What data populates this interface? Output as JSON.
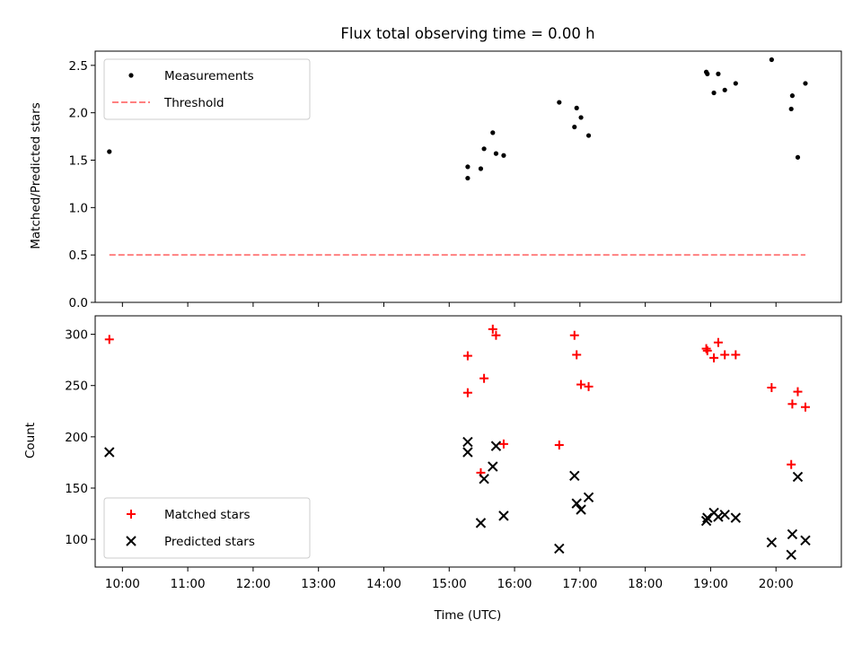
{
  "chart_data": {
    "type": "scatter",
    "title": "Flux total observing time = 0.00 h",
    "xlabel": "Time (UTC)",
    "x_ticks": [
      "10:00",
      "11:00",
      "12:00",
      "13:00",
      "14:00",
      "15:00",
      "16:00",
      "17:00",
      "18:00",
      "19:00",
      "20:00"
    ],
    "xlim": [
      "09:35",
      "21:00"
    ],
    "panels": [
      {
        "ylabel": "Matched/Predicted stars",
        "ylim": [
          0,
          2.65
        ],
        "y_ticks": [
          "0.0",
          "0.5",
          "1.0",
          "1.5",
          "2.0",
          "2.5"
        ],
        "legend_position": "upper left",
        "series": [
          {
            "name": "Measurements",
            "marker": "dot",
            "color": "#000000",
            "points": [
              {
                "x": "09:48",
                "y": 1.59
              },
              {
                "x": "15:17",
                "y": 1.43
              },
              {
                "x": "15:17",
                "y": 1.31
              },
              {
                "x": "15:29",
                "y": 1.41
              },
              {
                "x": "15:32",
                "y": 1.62
              },
              {
                "x": "15:40",
                "y": 1.79
              },
              {
                "x": "15:43",
                "y": 1.57
              },
              {
                "x": "15:50",
                "y": 1.55
              },
              {
                "x": "16:41",
                "y": 2.11
              },
              {
                "x": "16:55",
                "y": 1.85
              },
              {
                "x": "16:57",
                "y": 2.05
              },
              {
                "x": "17:01",
                "y": 1.95
              },
              {
                "x": "17:08",
                "y": 1.76
              },
              {
                "x": "18:56",
                "y": 2.43
              },
              {
                "x": "18:57",
                "y": 2.41
              },
              {
                "x": "19:03",
                "y": 2.21
              },
              {
                "x": "19:07",
                "y": 2.41
              },
              {
                "x": "19:13",
                "y": 2.24
              },
              {
                "x": "19:23",
                "y": 2.31
              },
              {
                "x": "19:56",
                "y": 2.56
              },
              {
                "x": "20:14",
                "y": 2.04
              },
              {
                "x": "20:15",
                "y": 2.18
              },
              {
                "x": "20:20",
                "y": 1.53
              },
              {
                "x": "20:27",
                "y": 2.31
              }
            ]
          },
          {
            "name": "Threshold",
            "marker": "dashed-line",
            "color": "#ff8080",
            "points": [
              {
                "x": "09:48",
                "y": 0.5
              },
              {
                "x": "20:27",
                "y": 0.5
              }
            ]
          }
        ]
      },
      {
        "ylabel": "Count",
        "ylim": [
          73,
          318
        ],
        "y_ticks": [
          "100",
          "150",
          "200",
          "250",
          "300"
        ],
        "legend_position": "lower left",
        "series": [
          {
            "name": "Matched stars",
            "marker": "plus",
            "color": "#ff0000",
            "points": [
              {
                "x": "09:48",
                "y": 295
              },
              {
                "x": "15:17",
                "y": 279
              },
              {
                "x": "15:17",
                "y": 243
              },
              {
                "x": "15:29",
                "y": 165
              },
              {
                "x": "15:32",
                "y": 257
              },
              {
                "x": "15:40",
                "y": 305
              },
              {
                "x": "15:43",
                "y": 299
              },
              {
                "x": "15:50",
                "y": 193
              },
              {
                "x": "16:41",
                "y": 192
              },
              {
                "x": "16:55",
                "y": 299
              },
              {
                "x": "16:57",
                "y": 280
              },
              {
                "x": "17:01",
                "y": 251
              },
              {
                "x": "17:08",
                "y": 249
              },
              {
                "x": "18:56",
                "y": 286
              },
              {
                "x": "18:57",
                "y": 284
              },
              {
                "x": "19:03",
                "y": 277
              },
              {
                "x": "19:07",
                "y": 292
              },
              {
                "x": "19:13",
                "y": 280
              },
              {
                "x": "19:23",
                "y": 280
              },
              {
                "x": "19:56",
                "y": 248
              },
              {
                "x": "20:14",
                "y": 173
              },
              {
                "x": "20:15",
                "y": 232
              },
              {
                "x": "20:20",
                "y": 244
              },
              {
                "x": "20:27",
                "y": 229
              }
            ]
          },
          {
            "name": "Predicted stars",
            "marker": "x",
            "color": "#000000",
            "points": [
              {
                "x": "09:48",
                "y": 185
              },
              {
                "x": "15:17",
                "y": 195
              },
              {
                "x": "15:17",
                "y": 185
              },
              {
                "x": "15:29",
                "y": 116
              },
              {
                "x": "15:32",
                "y": 159
              },
              {
                "x": "15:40",
                "y": 171
              },
              {
                "x": "15:43",
                "y": 191
              },
              {
                "x": "15:50",
                "y": 123
              },
              {
                "x": "16:41",
                "y": 91
              },
              {
                "x": "16:55",
                "y": 162
              },
              {
                "x": "16:57",
                "y": 135
              },
              {
                "x": "17:01",
                "y": 129
              },
              {
                "x": "17:08",
                "y": 141
              },
              {
                "x": "18:56",
                "y": 118
              },
              {
                "x": "18:57",
                "y": 121
              },
              {
                "x": "19:03",
                "y": 126
              },
              {
                "x": "19:07",
                "y": 122
              },
              {
                "x": "19:13",
                "y": 124
              },
              {
                "x": "19:23",
                "y": 121
              },
              {
                "x": "19:56",
                "y": 97
              },
              {
                "x": "20:14",
                "y": 85
              },
              {
                "x": "20:15",
                "y": 105
              },
              {
                "x": "20:20",
                "y": 161
              },
              {
                "x": "20:27",
                "y": 99
              }
            ]
          }
        ]
      }
    ]
  }
}
